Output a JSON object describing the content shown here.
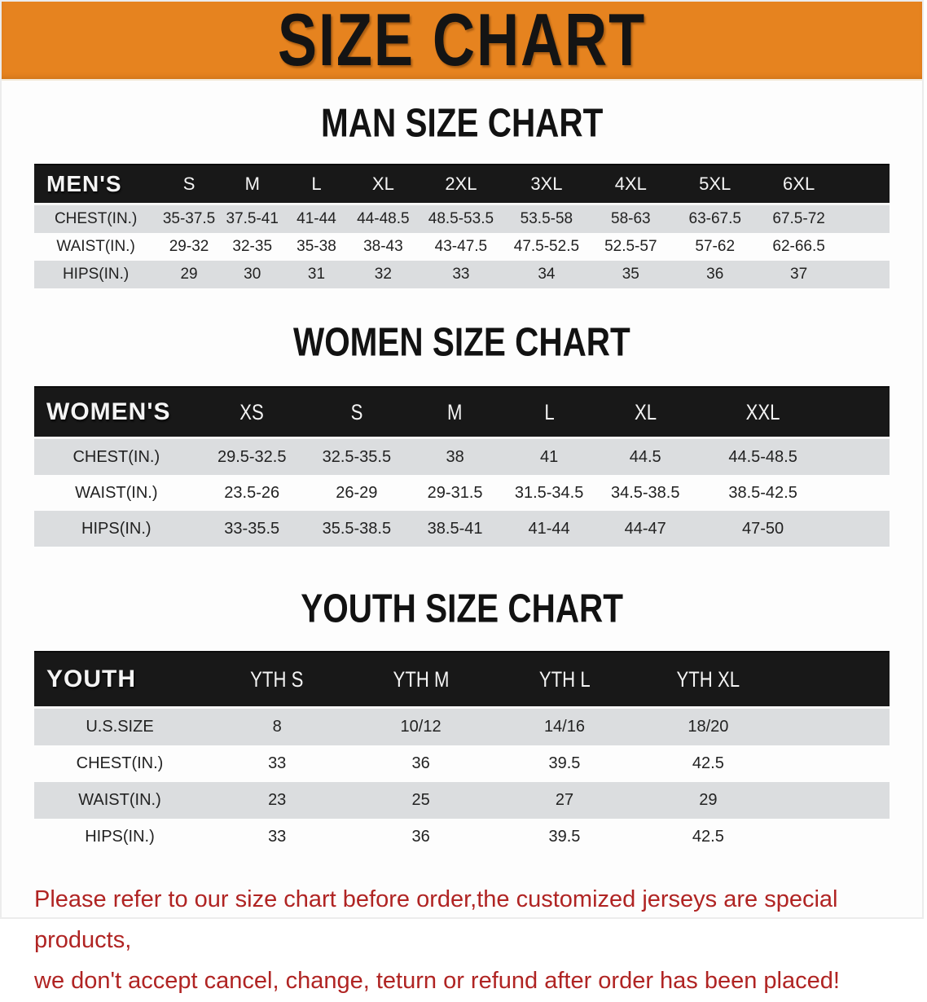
{
  "banner": {
    "title": "SIZE CHART"
  },
  "sections": [
    {
      "heading": "MAN SIZE CHART",
      "table": {
        "corner_label": "MEN'S",
        "columns": [
          "S",
          "M",
          "L",
          "XL",
          "2XL",
          "3XL",
          "4XL",
          "5XL",
          "6XL"
        ],
        "rows": [
          {
            "label": "CHEST(IN.)",
            "values": [
              "35-37.5",
              "37.5-41",
              "41-44",
              "44-48.5",
              "48.5-53.5",
              "53.5-58",
              "58-63",
              "63-67.5",
              "67.5-72"
            ]
          },
          {
            "label": "WAIST(IN.)",
            "values": [
              "29-32",
              "32-35",
              "35-38",
              "38-43",
              "43-47.5",
              "47.5-52.5",
              "52.5-57",
              "57-62",
              "62-66.5"
            ]
          },
          {
            "label": "HIPS(IN.)",
            "values": [
              "29",
              "30",
              "31",
              "32",
              "33",
              "34",
              "35",
              "36",
              "37"
            ]
          }
        ]
      }
    },
    {
      "heading": "WOMEN SIZE CHART",
      "table": {
        "corner_label": "WOMEN'S",
        "columns": [
          "XS",
          "S",
          "M",
          "L",
          "XL",
          "XXL"
        ],
        "rows": [
          {
            "label": "CHEST(IN.)",
            "values": [
              "29.5-32.5",
              "32.5-35.5",
              "38",
              "41",
              "44.5",
              "44.5-48.5"
            ]
          },
          {
            "label": "WAIST(IN.)",
            "values": [
              "23.5-26",
              "26-29",
              "29-31.5",
              "31.5-34.5",
              "34.5-38.5",
              "38.5-42.5"
            ]
          },
          {
            "label": "HIPS(IN.)",
            "values": [
              "33-35.5",
              "35.5-38.5",
              "38.5-41",
              "41-44",
              "44-47",
              "47-50"
            ]
          }
        ]
      }
    },
    {
      "heading": "YOUTH SIZE CHART",
      "table": {
        "corner_label": "YOUTH",
        "columns": [
          "YTH S",
          "YTH M",
          "YTH L",
          "YTH XL"
        ],
        "rows": [
          {
            "label": "U.S.SIZE",
            "values": [
              "8",
              "10/12",
              "14/16",
              "18/20"
            ]
          },
          {
            "label": "CHEST(IN.)",
            "values": [
              "33",
              "36",
              "39.5",
              "42.5"
            ]
          },
          {
            "label": "WAIST(IN.)",
            "values": [
              "23",
              "25",
              "27",
              "29"
            ]
          },
          {
            "label": "HIPS(IN.)",
            "values": [
              "33",
              "36",
              "39.5",
              "42.5"
            ]
          }
        ]
      }
    }
  ],
  "disclaimer": {
    "line1": "Please refer to our size chart before order,the customized jerseys are special products,",
    "line2": "we don't accept cancel, change, teturn or refund after order has been placed!"
  },
  "colors": {
    "banner_bg": "#e6831f",
    "header_bg": "#181818",
    "stripe_gray": "#dbdddf",
    "disclaimer_red": "#b02423"
  }
}
